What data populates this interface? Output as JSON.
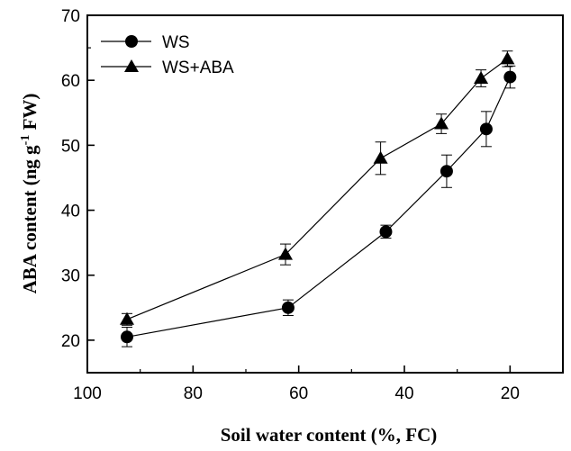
{
  "chart_data": {
    "type": "line",
    "xlabel": "Soil water content (%, FC)",
    "ylabel_main": "ABA content (ng g",
    "ylabel_sup": "-1",
    "ylabel_tail": " FW)",
    "xlim": [
      100,
      10
    ],
    "ylim": [
      15,
      70
    ],
    "x_ticks": [
      100,
      80,
      60,
      40,
      20
    ],
    "y_ticks": [
      20,
      30,
      40,
      50,
      60,
      70
    ],
    "grid": false,
    "legend_position": "top-left",
    "series": [
      {
        "name": "WS",
        "marker": "circle",
        "x": [
          92.5,
          62,
          43.5,
          32,
          24.5,
          20
        ],
        "y": [
          20.5,
          25,
          36.7,
          46,
          52.5,
          60.5
        ],
        "error": [
          1.5,
          1.2,
          1.0,
          2.5,
          2.7,
          1.7
        ]
      },
      {
        "name": "WS+ABA",
        "marker": "triangle",
        "x": [
          92.5,
          62.5,
          44.5,
          33,
          25.5,
          20.5
        ],
        "y": [
          23.2,
          33.2,
          48,
          53.3,
          60.3,
          63.3
        ],
        "error": [
          0.9,
          1.6,
          2.5,
          1.5,
          1.3,
          1.2
        ]
      }
    ]
  }
}
